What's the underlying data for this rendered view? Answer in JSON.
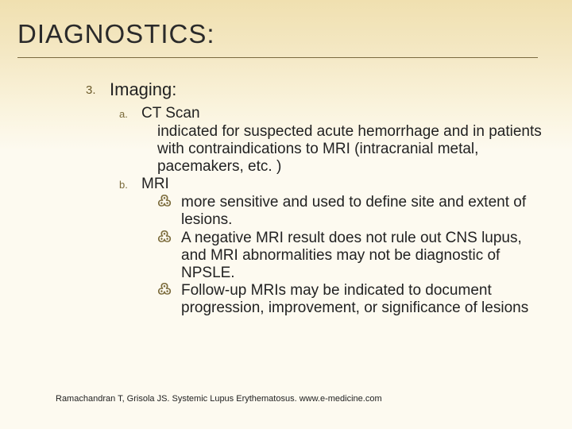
{
  "title": "DIAGNOSTICS:",
  "list": {
    "number": "3.",
    "heading": "Imaging:",
    "items": [
      {
        "letter": "a.",
        "head": "CT Scan",
        "desc": "indicated for suspected acute hemorrhage and in patients with contraindications to MRI (intracranial metal, pacemakers, etc. )"
      },
      {
        "letter": "b.",
        "head": "MRI",
        "bullets": [
          "more sensitive and used to define site and extent of lesions.",
          "A negative MRI result does not rule out CNS lupus, and MRI abnormalities may not be diagnostic of NPSLE.",
          "Follow-up MRIs may be indicated to document progression, improvement, or significance of lesions"
        ]
      }
    ]
  },
  "citation": "Ramachandran T, Grisola JS. Systemic Lupus Erythematosus. www.e-medicine.com",
  "bullet_glyph": "߷",
  "colors": {
    "bg": "#fdfaf0",
    "band_top": "#f0e0b0",
    "underline": "#7a6a40",
    "accent": "#7a6a3a"
  }
}
